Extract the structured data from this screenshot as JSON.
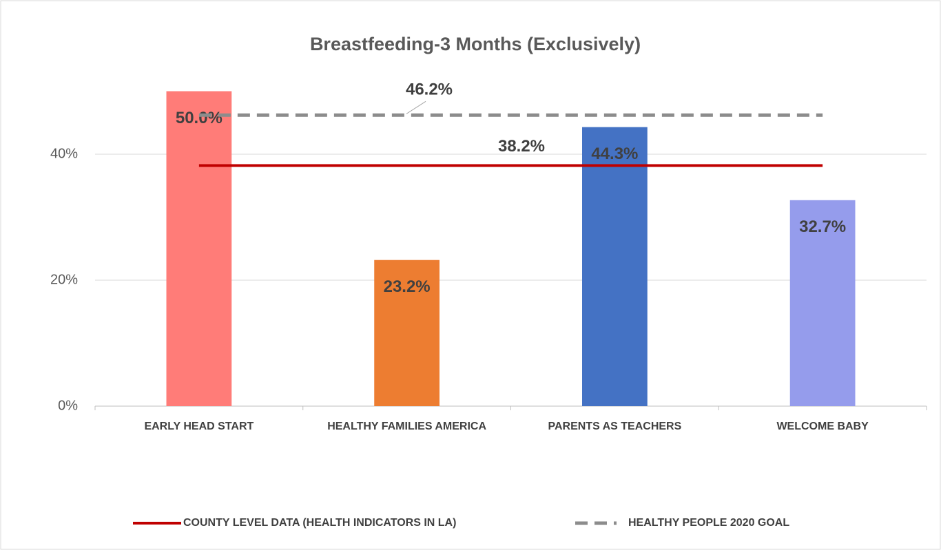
{
  "chart_data": {
    "type": "bar",
    "title": "Breastfeeding-3 Months (Exclusively)",
    "categories": [
      "EARLY HEAD START",
      "HEALTHY FAMILIES AMERICA",
      "PARENTS AS TEACHERS",
      "WELCOME BABY"
    ],
    "values": [
      50.0,
      23.2,
      44.3,
      32.7
    ],
    "value_labels": [
      "50.0%",
      "23.2%",
      "44.3%",
      "32.7%"
    ],
    "colors": [
      "#ff7c78",
      "#ed7d31",
      "#4472c4",
      "#959cec"
    ],
    "ylim": [
      0,
      55
    ],
    "yticks": [
      {
        "value": 0,
        "label": "0%"
      },
      {
        "value": 20,
        "label": "20%"
      },
      {
        "value": 40,
        "label": "40%"
      }
    ],
    "grid": true,
    "reference_lines": [
      {
        "name": "COUNTY LEVEL DATA (HEALTH INDICATORS IN LA)",
        "color": "#c00000",
        "dashed": false,
        "value": 38.2,
        "value_label": "38.2%"
      },
      {
        "name": "HEALTHY PEOPLE 2020 GOAL",
        "color": "#8c8c8c",
        "dashed": true,
        "value": 46.2,
        "value_label": "46.2%"
      }
    ],
    "legend": "bottom"
  }
}
